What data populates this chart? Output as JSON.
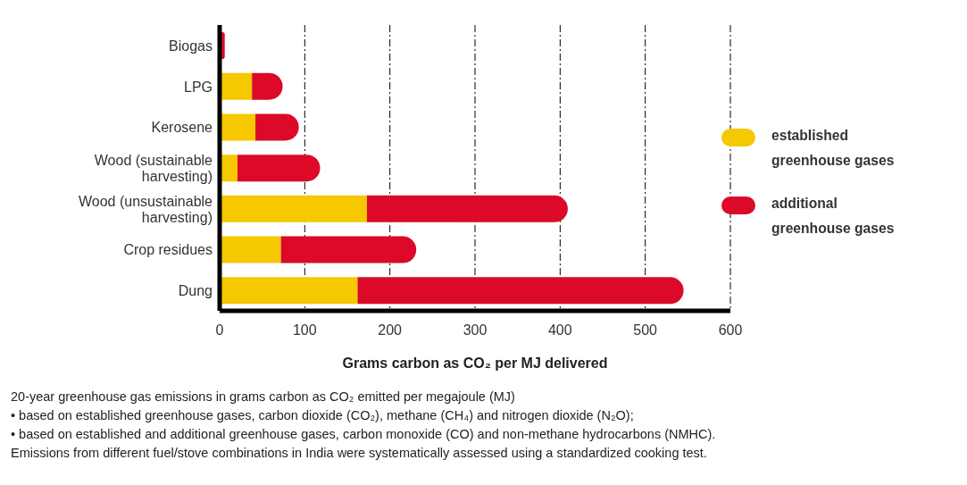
{
  "chart_data": {
    "type": "bar",
    "orientation": "horizontal",
    "stacked": true,
    "categories": [
      "Biogas",
      "LPG",
      "Kerosene",
      "Wood (sustainable harvesting)",
      "Wood (unsustainable harvesting)",
      "Crop residues",
      "Dung"
    ],
    "series": [
      {
        "name": "established greenhouse gases",
        "color": "#f5c800",
        "values": [
          0,
          38,
          42,
          21,
          173,
          72,
          162
        ]
      },
      {
        "name": "additional greenhouse gases",
        "color": "#dc0a28",
        "values": [
          6,
          36,
          51,
          97,
          236,
          159,
          383
        ]
      }
    ],
    "xlim": [
      0,
      600
    ],
    "xticks": [
      0,
      100,
      200,
      300,
      400,
      500,
      600
    ],
    "xlabel": "Grams carbon as CO₂ per MJ delivered",
    "grid": "x",
    "legend": "right",
    "annotations": [
      "20-year greenhouse gas emissions in grams carbon as CO₂ emitted per megajoule (MJ)",
      "• based on established greenhouse gases, carbon dioxide (CO₂), methane (CH₄) and nitrogen dioxide (N₂O);",
      "• based on established and additional greenhouse gases, carbon monoxide (CO) and non-methane hydrocarbons (NMHC).",
      "Emissions from different fuel/stove combinations in India were systematically assessed using a standardized cooking test."
    ]
  }
}
